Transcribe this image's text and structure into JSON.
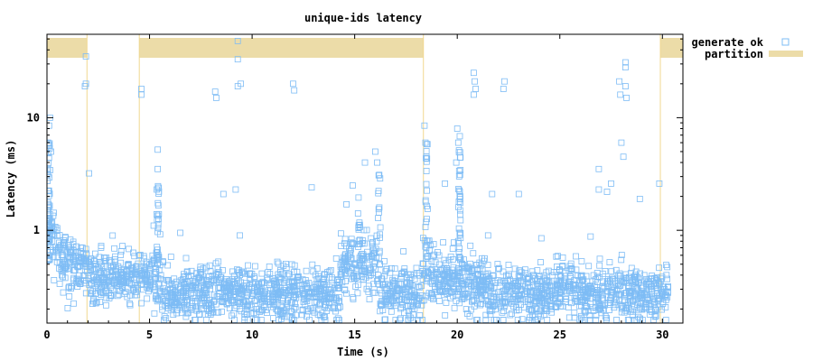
{
  "chart_data": {
    "type": "scatter",
    "title": "unique-ids latency",
    "xlabel": "Time (s)",
    "ylabel": "Latency (ms)",
    "xlim": [
      0,
      31
    ],
    "ylim": [
      0.15,
      55
    ],
    "y_scale": "log",
    "x_ticks": [
      0,
      5,
      10,
      15,
      20,
      25,
      30
    ],
    "y_ticks": [
      {
        "value": 1,
        "label": "1"
      },
      {
        "value": 10,
        "label": "10"
      }
    ],
    "grid": false,
    "legend_position": "right",
    "colors": {
      "points": "#7ebcf5",
      "partition": "#ecdca8",
      "partition_edge": "#f0d890"
    },
    "partitions": [
      [
        0,
        1.95
      ],
      [
        4.5,
        18.35
      ],
      [
        29.9,
        31
      ]
    ],
    "series": [
      {
        "name": "generate ok",
        "marker": "open-square"
      },
      {
        "name": "partition",
        "marker": "bar"
      }
    ],
    "outliers": [
      {
        "x": 9.3,
        "y": 48
      },
      {
        "x": 9.3,
        "y": 33
      },
      {
        "x": 9.3,
        "y": 19
      },
      {
        "x": 9.45,
        "y": 20
      },
      {
        "x": 1.9,
        "y": 35
      },
      {
        "x": 1.9,
        "y": 20
      },
      {
        "x": 1.85,
        "y": 19
      },
      {
        "x": 4.6,
        "y": 18
      },
      {
        "x": 4.6,
        "y": 16
      },
      {
        "x": 8.2,
        "y": 17
      },
      {
        "x": 8.25,
        "y": 15
      },
      {
        "x": 12.0,
        "y": 20
      },
      {
        "x": 12.05,
        "y": 17.5
      },
      {
        "x": 20.8,
        "y": 25
      },
      {
        "x": 20.85,
        "y": 21
      },
      {
        "x": 20.9,
        "y": 18
      },
      {
        "x": 20.8,
        "y": 16
      },
      {
        "x": 22.3,
        "y": 21
      },
      {
        "x": 22.25,
        "y": 18
      },
      {
        "x": 27.9,
        "y": 21
      },
      {
        "x": 28.2,
        "y": 31
      },
      {
        "x": 28.2,
        "y": 28
      },
      {
        "x": 28.2,
        "y": 19
      },
      {
        "x": 28.25,
        "y": 15
      },
      {
        "x": 27.95,
        "y": 16
      },
      {
        "x": 18.4,
        "y": 8.5
      },
      {
        "x": 18.45,
        "y": 6
      },
      {
        "x": 18.5,
        "y": 4.5
      },
      {
        "x": 20.0,
        "y": 8
      },
      {
        "x": 20.05,
        "y": 6
      },
      {
        "x": 19.95,
        "y": 4
      },
      {
        "x": 16.0,
        "y": 5
      },
      {
        "x": 16.1,
        "y": 4
      },
      {
        "x": 15.5,
        "y": 4
      },
      {
        "x": 14.9,
        "y": 2.5
      },
      {
        "x": 5.4,
        "y": 5.2
      },
      {
        "x": 5.4,
        "y": 3.5
      },
      {
        "x": 5.35,
        "y": 2.3
      },
      {
        "x": 2.05,
        "y": 3.2
      },
      {
        "x": 0.15,
        "y": 10
      },
      {
        "x": 0.1,
        "y": 8.5
      },
      {
        "x": 0.05,
        "y": 6
      },
      {
        "x": 0.2,
        "y": 5
      },
      {
        "x": 0.05,
        "y": 3.5
      },
      {
        "x": 9.2,
        "y": 2.3
      },
      {
        "x": 8.6,
        "y": 2.1
      },
      {
        "x": 12.9,
        "y": 2.4
      },
      {
        "x": 23.0,
        "y": 2.1
      },
      {
        "x": 21.7,
        "y": 2.1
      },
      {
        "x": 19.4,
        "y": 2.6
      },
      {
        "x": 26.9,
        "y": 2.3
      },
      {
        "x": 26.9,
        "y": 3.5
      },
      {
        "x": 27.3,
        "y": 2.2
      },
      {
        "x": 28.0,
        "y": 6
      },
      {
        "x": 28.1,
        "y": 4.5
      },
      {
        "x": 27.5,
        "y": 2.6
      },
      {
        "x": 29.85,
        "y": 2.6
      },
      {
        "x": 28.9,
        "y": 1.9
      },
      {
        "x": 14.6,
        "y": 1.7
      },
      {
        "x": 5.2,
        "y": 1.1
      },
      {
        "x": 6.5,
        "y": 0.95
      },
      {
        "x": 9.4,
        "y": 0.9
      },
      {
        "x": 21.5,
        "y": 0.9
      },
      {
        "x": 24.1,
        "y": 0.85
      },
      {
        "x": 26.5,
        "y": 0.88
      }
    ]
  }
}
